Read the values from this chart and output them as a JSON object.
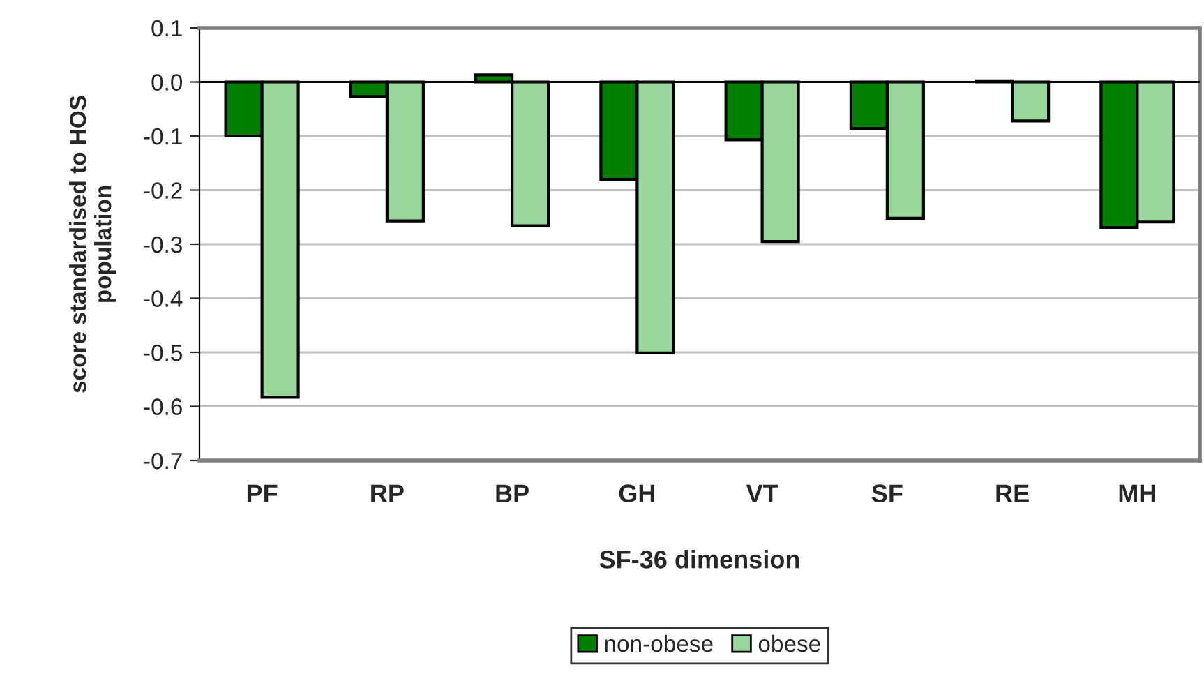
{
  "chart_data": {
    "type": "bar",
    "xlabel": "SF-36 dimension",
    "ylabel": "score standardised to HOS\npopulation",
    "categories": [
      "PF",
      "RP",
      "BP",
      "GH",
      "VT",
      "SF",
      "RE",
      "MH"
    ],
    "series": [
      {
        "name": "non-obese",
        "color": "#008000",
        "values": [
          -0.1,
          -0.027,
          0.013,
          -0.18,
          -0.107,
          -0.086,
          0.002,
          -0.269
        ]
      },
      {
        "name": "obese",
        "color": "#99d699",
        "values": [
          -0.583,
          -0.257,
          -0.266,
          -0.501,
          -0.295,
          -0.252,
          -0.072,
          -0.259
        ]
      }
    ],
    "ylim": [
      -0.7,
      0.1
    ],
    "yticks": [
      {
        "value": 0.1,
        "label": "0.1"
      },
      {
        "value": 0.0,
        "label": "0.0"
      },
      {
        "value": -0.1,
        "label": "-0.1"
      },
      {
        "value": -0.2,
        "label": "-0.2"
      },
      {
        "value": -0.3,
        "label": "-0.3"
      },
      {
        "value": -0.4,
        "label": "-0.4"
      },
      {
        "value": -0.5,
        "label": "-0.5"
      },
      {
        "value": -0.6,
        "label": "-0.6"
      },
      {
        "value": -0.7,
        "label": "-0.7"
      }
    ],
    "grid": "y",
    "legend": "bottom"
  }
}
